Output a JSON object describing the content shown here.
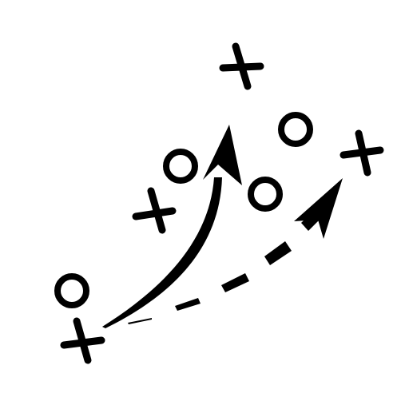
{
  "diagram": {
    "ink_color": "#000000",
    "background_color": "#ffffff",
    "markers": [
      {
        "kind": "x",
        "icon": "x-mark-icon",
        "role": "offense"
      },
      {
        "kind": "x",
        "icon": "x-mark-icon",
        "role": "offense"
      },
      {
        "kind": "x",
        "icon": "x-mark-icon",
        "role": "offense"
      },
      {
        "kind": "x",
        "icon": "x-mark-icon",
        "role": "offense"
      },
      {
        "kind": "o",
        "icon": "o-mark-icon",
        "role": "defense"
      },
      {
        "kind": "o",
        "icon": "o-mark-icon",
        "role": "defense"
      },
      {
        "kind": "o",
        "icon": "o-mark-icon",
        "role": "defense"
      },
      {
        "kind": "o",
        "icon": "o-mark-icon",
        "role": "defense"
      }
    ],
    "paths": [
      {
        "style": "solid",
        "icon": "curved-arrow-icon"
      },
      {
        "style": "dashed",
        "icon": "dashed-curved-arrow-icon"
      }
    ]
  }
}
